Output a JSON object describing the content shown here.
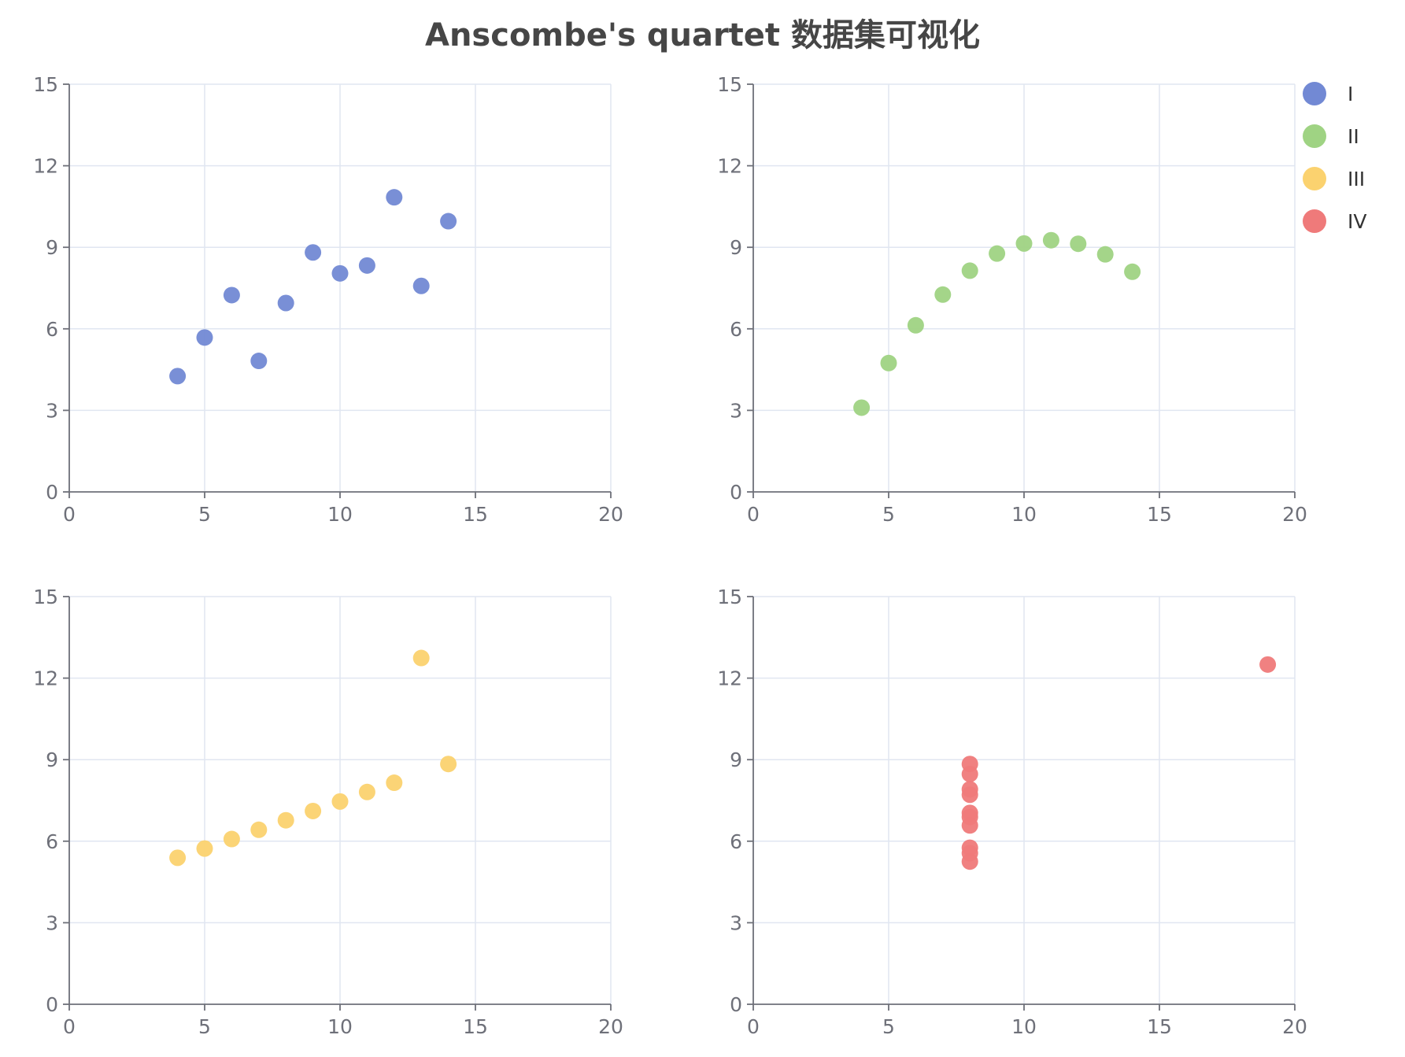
{
  "title": "Anscombe's quartet 数据集可视化",
  "legend": {
    "position": "top-right",
    "items": [
      {
        "label": "I",
        "color": "#7289d4"
      },
      {
        "label": "II",
        "color": "#9fd383"
      },
      {
        "label": "III",
        "color": "#fbd26f"
      },
      {
        "label": "IV",
        "color": "#ef7a7a"
      }
    ]
  },
  "chart_data": [
    {
      "type": "scatter",
      "series_name": "I",
      "color": "#7289d4",
      "xlim": [
        0,
        20
      ],
      "ylim": [
        0,
        15
      ],
      "xticks": [
        0,
        5,
        10,
        15,
        20
      ],
      "yticks": [
        0,
        3,
        6,
        9,
        12,
        15
      ],
      "grid": true,
      "points": [
        [
          10.0,
          8.04
        ],
        [
          8.0,
          6.95
        ],
        [
          13.0,
          7.58
        ],
        [
          9.0,
          8.81
        ],
        [
          11.0,
          8.33
        ],
        [
          14.0,
          9.96
        ],
        [
          6.0,
          7.24
        ],
        [
          4.0,
          4.26
        ],
        [
          12.0,
          10.84
        ],
        [
          7.0,
          4.82
        ],
        [
          5.0,
          5.68
        ]
      ]
    },
    {
      "type": "scatter",
      "series_name": "II",
      "color": "#9fd383",
      "xlim": [
        0,
        20
      ],
      "ylim": [
        0,
        15
      ],
      "xticks": [
        0,
        5,
        10,
        15,
        20
      ],
      "yticks": [
        0,
        3,
        6,
        9,
        12,
        15
      ],
      "grid": true,
      "points": [
        [
          10.0,
          9.14
        ],
        [
          8.0,
          8.14
        ],
        [
          13.0,
          8.74
        ],
        [
          9.0,
          8.77
        ],
        [
          11.0,
          9.26
        ],
        [
          14.0,
          8.1
        ],
        [
          6.0,
          6.13
        ],
        [
          4.0,
          3.1
        ],
        [
          12.0,
          9.13
        ],
        [
          7.0,
          7.26
        ],
        [
          5.0,
          4.74
        ]
      ]
    },
    {
      "type": "scatter",
      "series_name": "III",
      "color": "#fbd26f",
      "xlim": [
        0,
        20
      ],
      "ylim": [
        0,
        15
      ],
      "xticks": [
        0,
        5,
        10,
        15,
        20
      ],
      "yticks": [
        0,
        3,
        6,
        9,
        12,
        15
      ],
      "grid": true,
      "points": [
        [
          10.0,
          7.46
        ],
        [
          8.0,
          6.77
        ],
        [
          13.0,
          12.74
        ],
        [
          9.0,
          7.11
        ],
        [
          11.0,
          7.81
        ],
        [
          14.0,
          8.84
        ],
        [
          6.0,
          6.08
        ],
        [
          4.0,
          5.39
        ],
        [
          12.0,
          8.15
        ],
        [
          7.0,
          6.42
        ],
        [
          5.0,
          5.73
        ]
      ]
    },
    {
      "type": "scatter",
      "series_name": "IV",
      "color": "#ef7a7a",
      "xlim": [
        0,
        20
      ],
      "ylim": [
        0,
        15
      ],
      "xticks": [
        0,
        5,
        10,
        15,
        20
      ],
      "yticks": [
        0,
        3,
        6,
        9,
        12,
        15
      ],
      "grid": true,
      "points": [
        [
          8.0,
          6.58
        ],
        [
          8.0,
          5.76
        ],
        [
          8.0,
          7.71
        ],
        [
          8.0,
          8.84
        ],
        [
          8.0,
          8.47
        ],
        [
          8.0,
          7.04
        ],
        [
          8.0,
          5.25
        ],
        [
          19.0,
          12.5
        ],
        [
          8.0,
          5.56
        ],
        [
          8.0,
          7.91
        ],
        [
          8.0,
          6.89
        ]
      ]
    }
  ]
}
